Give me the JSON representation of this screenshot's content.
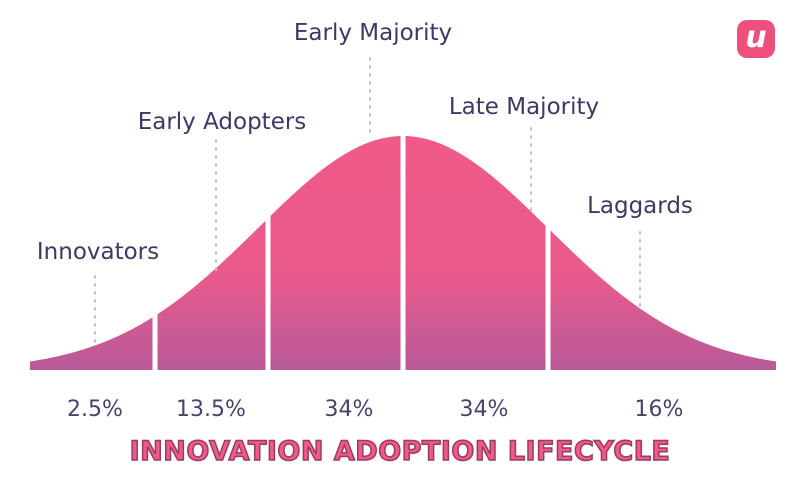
{
  "logo": {
    "glyph": "u",
    "brand_color": "#ee4f7d"
  },
  "segments": [
    {
      "name": "Innovators",
      "percent": "2.5%"
    },
    {
      "name": "Early Adopters",
      "percent": "13.5%"
    },
    {
      "name": "Early Majority",
      "percent": "34%"
    },
    {
      "name": "Late Majority",
      "percent": "34%"
    },
    {
      "name": "Laggards",
      "percent": "16%"
    }
  ],
  "title": "INNOVATION ADOPTION LIFECYCLE",
  "colors": {
    "curve_top": "#f05a87",
    "curve_bottom": "#b75a99",
    "label_text": "#3a3a64",
    "title_fill": "#ee5b86"
  }
}
